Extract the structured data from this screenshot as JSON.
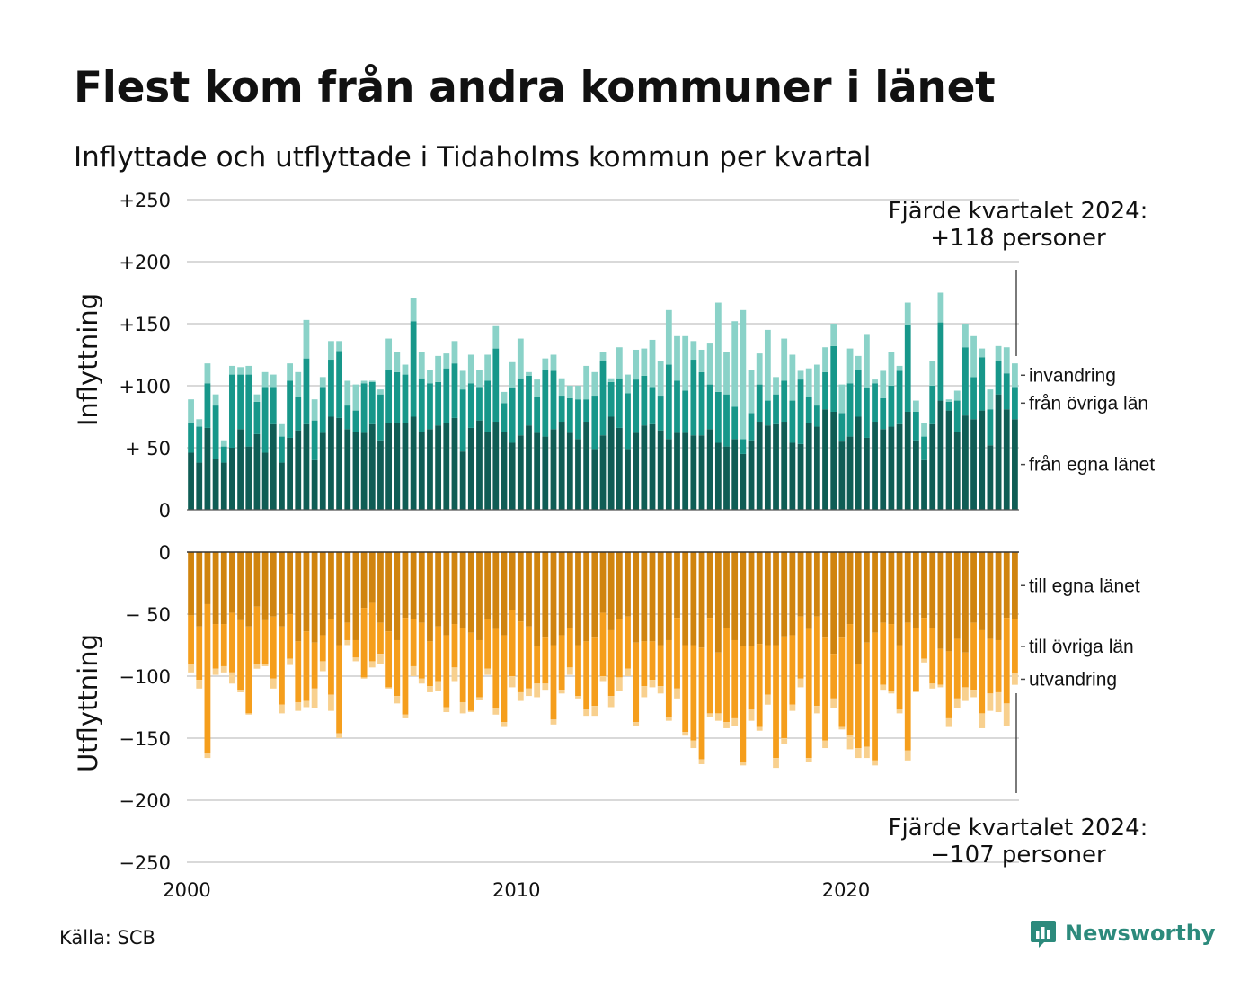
{
  "title": "Flest kom från andra kommuner i länet",
  "subtitle": "Inflyttade och utflyttade i Tidaholms kommun per kvartal",
  "source": "Källa: SCB",
  "brand": "Newsworthy",
  "colors": {
    "in_own": "#0f5d55",
    "in_other": "#17978a",
    "in_imm": "#8ad2c8",
    "out_own": "#d0840f",
    "out_other": "#f59e1c",
    "out_emig": "#f8d08e",
    "grid": "#d9d9d9",
    "brand": "#2c8a7c"
  },
  "chart_data": [
    {
      "panel": "Inflyttning",
      "type": "bar",
      "stacked": true,
      "ylabel": "Inflyttning",
      "ylim": [
        0,
        250
      ],
      "y_ticks": [
        "0",
        "+ 50",
        "+100",
        "+150",
        "+200",
        "+250"
      ],
      "x_start": 2000,
      "x_ticks": [
        "2000",
        "2010",
        "2020"
      ],
      "annotation": [
        "Fjärde kvartalet 2024:",
        "+118 personer"
      ],
      "series": [
        {
          "name": "från egna länet",
          "values": [
            46,
            38,
            66,
            41,
            38,
            50,
            65,
            51,
            61,
            46,
            69,
            38,
            58,
            64,
            69,
            40,
            62,
            75,
            74,
            65,
            63,
            62,
            69,
            56,
            70,
            70,
            70,
            75,
            63,
            65,
            68,
            70,
            74,
            47,
            66,
            72,
            63,
            71,
            63,
            54,
            60,
            68,
            62,
            59,
            65,
            71,
            62,
            57,
            71,
            49,
            60,
            75,
            66,
            49,
            62,
            68,
            69,
            64,
            57,
            62,
            62,
            60,
            60,
            65,
            54,
            51,
            57,
            45,
            56,
            71,
            68,
            69,
            71,
            54,
            53,
            70,
            67,
            81,
            79,
            55,
            59,
            75,
            58,
            71,
            65,
            67,
            69,
            79,
            56,
            40,
            69,
            88,
            80,
            63,
            76,
            73,
            80,
            52,
            93,
            81,
            73
          ]
        },
        {
          "name": "från övriga län",
          "values": [
            24,
            29,
            36,
            43,
            13,
            59,
            44,
            58,
            26,
            53,
            30,
            21,
            46,
            27,
            53,
            32,
            37,
            46,
            54,
            19,
            17,
            40,
            34,
            37,
            43,
            41,
            39,
            77,
            43,
            37,
            35,
            44,
            44,
            50,
            36,
            27,
            41,
            59,
            23,
            44,
            46,
            40,
            29,
            54,
            47,
            21,
            28,
            32,
            18,
            43,
            60,
            28,
            40,
            45,
            43,
            40,
            30,
            28,
            60,
            42,
            34,
            61,
            51,
            36,
            41,
            42,
            26,
            12,
            22,
            30,
            20,
            24,
            33,
            34,
            52,
            21,
            17,
            30,
            53,
            23,
            43,
            38,
            40,
            31,
            25,
            33,
            43,
            70,
            23,
            19,
            31,
            63,
            7,
            25,
            55,
            34,
            43,
            29,
            27,
            29,
            26
          ]
        },
        {
          "name": "invandring",
          "values": [
            19,
            6,
            16,
            9,
            5,
            7,
            6,
            7,
            6,
            12,
            10,
            10,
            14,
            20,
            31,
            17,
            8,
            15,
            8,
            20,
            21,
            2,
            1,
            4,
            25,
            16,
            8,
            19,
            21,
            11,
            21,
            12,
            18,
            15,
            23,
            14,
            21,
            18,
            9,
            21,
            32,
            3,
            14,
            9,
            13,
            14,
            10,
            11,
            27,
            19,
            7,
            3,
            25,
            15,
            24,
            22,
            38,
            28,
            44,
            36,
            44,
            15,
            18,
            33,
            72,
            34,
            69,
            104,
            35,
            25,
            57,
            14,
            34,
            37,
            7,
            23,
            33,
            20,
            18,
            23,
            28,
            11,
            43,
            3,
            22,
            27,
            4,
            18,
            9,
            11,
            20,
            24,
            2,
            8,
            19,
            33,
            7,
            16,
            12,
            21,
            19
          ]
        }
      ]
    },
    {
      "panel": "Utflyttning",
      "type": "bar",
      "stacked": true,
      "ylabel": "Utflyttning",
      "ylim": [
        -250,
        0
      ],
      "y_ticks": [
        "0",
        "− 50",
        "−100",
        "−150",
        "−200",
        "−250"
      ],
      "x_start": 2000,
      "x_ticks": [
        "2000",
        "2010",
        "2020"
      ],
      "annotation": [
        "Fjärde kvartalet 2024:",
        "−107 personer"
      ],
      "series": [
        {
          "name": "till egna länet",
          "values": [
            -51,
            -60,
            -42,
            -58,
            -58,
            -49,
            -55,
            -60,
            -44,
            -55,
            -52,
            -60,
            -50,
            -72,
            -64,
            -73,
            -67,
            -54,
            -75,
            -57,
            -71,
            -45,
            -41,
            -57,
            -64,
            -71,
            -53,
            -54,
            -57,
            -72,
            -60,
            -67,
            -58,
            -61,
            -65,
            -71,
            -54,
            -62,
            -67,
            -47,
            -56,
            -60,
            -76,
            -69,
            -75,
            -67,
            -61,
            -75,
            -72,
            -69,
            -49,
            -63,
            -54,
            -52,
            -73,
            -72,
            -72,
            -75,
            -71,
            -53,
            -75,
            -75,
            -77,
            -53,
            -81,
            -61,
            -71,
            -76,
            -76,
            -74,
            -75,
            -75,
            -68,
            -67,
            -52,
            -62,
            -52,
            -69,
            -82,
            -69,
            -58,
            -90,
            -73,
            -65,
            -57,
            -58,
            -75,
            -57,
            -61,
            -53,
            -61,
            -78,
            -80,
            -70,
            -81,
            -57,
            -63,
            -70,
            -71,
            -53,
            -54
          ]
        },
        {
          "name": "till övriga län",
          "values": [
            -39,
            -43,
            -120,
            -36,
            -34,
            -48,
            -56,
            -70,
            -46,
            -35,
            -50,
            -63,
            -36,
            -49,
            -56,
            -37,
            -21,
            -61,
            -71,
            -14,
            -14,
            -56,
            -47,
            -25,
            -45,
            -45,
            -78,
            -38,
            -45,
            -36,
            -44,
            -58,
            -35,
            -60,
            -63,
            -46,
            -40,
            -64,
            -70,
            -53,
            -57,
            -50,
            -30,
            -37,
            -60,
            -44,
            -32,
            -41,
            -55,
            -55,
            -51,
            -53,
            -47,
            -42,
            -64,
            -36,
            -31,
            -33,
            -62,
            -57,
            -70,
            -77,
            -90,
            -77,
            -49,
            -76,
            -63,
            -93,
            -51,
            -67,
            -40,
            -91,
            -82,
            -56,
            -50,
            -104,
            -72,
            -83,
            -36,
            -72,
            -90,
            -68,
            -84,
            -103,
            -50,
            -54,
            -52,
            -103,
            -51,
            -33,
            -45,
            -29,
            -54,
            -48,
            -28,
            -54,
            -67,
            -44,
            -42,
            -69,
            -44
          ]
        },
        {
          "name": "utvandring",
          "values": [
            -7,
            -7,
            -4,
            -5,
            -5,
            -9,
            -2,
            -1,
            -4,
            -2,
            -8,
            -7,
            -5,
            -7,
            -5,
            -16,
            -8,
            -13,
            -4,
            -4,
            -3,
            -1,
            -5,
            -8,
            -1,
            -6,
            -3,
            -8,
            -4,
            -5,
            -8,
            -4,
            -11,
            -9,
            -1,
            -2,
            -5,
            -5,
            -4,
            -9,
            -7,
            -6,
            -11,
            -5,
            -4,
            -3,
            -6,
            -2,
            -5,
            -8,
            -4,
            -9,
            -11,
            -6,
            -3,
            -9,
            -6,
            -6,
            -3,
            -8,
            -3,
            -6,
            -4,
            -3,
            -6,
            -5,
            -6,
            -3,
            -9,
            -3,
            -8,
            -8,
            -5,
            -5,
            -7,
            -3,
            -6,
            -6,
            -8,
            -2,
            -11,
            -8,
            -9,
            -4,
            -4,
            -2,
            -3,
            -8,
            -1,
            -3,
            -4,
            -2,
            -7,
            -8,
            -11,
            -6,
            -12,
            -14,
            -16,
            -18,
            -9
          ]
        }
      ]
    }
  ]
}
